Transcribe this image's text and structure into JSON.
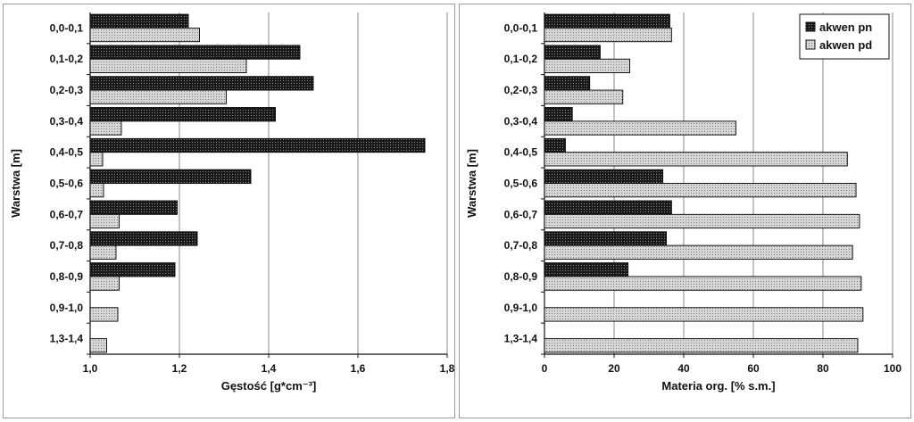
{
  "chart_data": [
    {
      "type": "bar",
      "orientation": "horizontal",
      "categories": [
        "0,0-0,1",
        "0,1-0,2",
        "0,2-0,3",
        "0,3-0,4",
        "0,4-0,5",
        "0,5-0,6",
        "0,6-0,7",
        "0,7-0,8",
        "0,8-0,9",
        "0,9-1,0",
        "1,3-1,4"
      ],
      "series": [
        {
          "name": "akwen pn",
          "values": [
            1.22,
            1.47,
            1.5,
            1.415,
            1.75,
            1.36,
            1.195,
            1.24,
            1.19,
            null,
            null
          ]
        },
        {
          "name": "akwen pd",
          "values": [
            1.245,
            1.35,
            1.305,
            1.07,
            1.028,
            1.03,
            1.065,
            1.058,
            1.065,
            1.062,
            1.037
          ]
        }
      ],
      "xlim": [
        1.0,
        1.8
      ],
      "xticks": [
        "1,0",
        "1,2",
        "1,4",
        "1,6",
        "1,8"
      ],
      "xlabel": "Gęstość [g*cm⁻³]",
      "ylabel": "Warstwa [m]",
      "grid": "vertical"
    },
    {
      "type": "bar",
      "orientation": "horizontal",
      "categories": [
        "0,0-0,1",
        "0,1-0,2",
        "0,2-0,3",
        "0,3-0,4",
        "0,4-0,5",
        "0,5-0,6",
        "0,6-0,7",
        "0,7-0,8",
        "0,8-0,9",
        "0,9-1,0",
        "1,3-1,4"
      ],
      "series": [
        {
          "name": "akwen pn",
          "values": [
            36,
            16,
            13,
            8,
            6,
            34,
            36.5,
            35,
            24,
            null,
            null
          ]
        },
        {
          "name": "akwen pd",
          "values": [
            36.5,
            24.5,
            22.5,
            55,
            87,
            89.5,
            90.5,
            88.5,
            91,
            91.5,
            90
          ]
        }
      ],
      "xlim": [
        0,
        100
      ],
      "xticks": [
        "0",
        "20",
        "40",
        "60",
        "80",
        "100"
      ],
      "xlabel": "Materia org. [% s.m.]",
      "ylabel": "Warstwa [m]",
      "legend": "top-right",
      "grid": "vertical"
    }
  ],
  "colors": {
    "pn": "#1a1a1a",
    "pd": "#cfcfcf"
  }
}
